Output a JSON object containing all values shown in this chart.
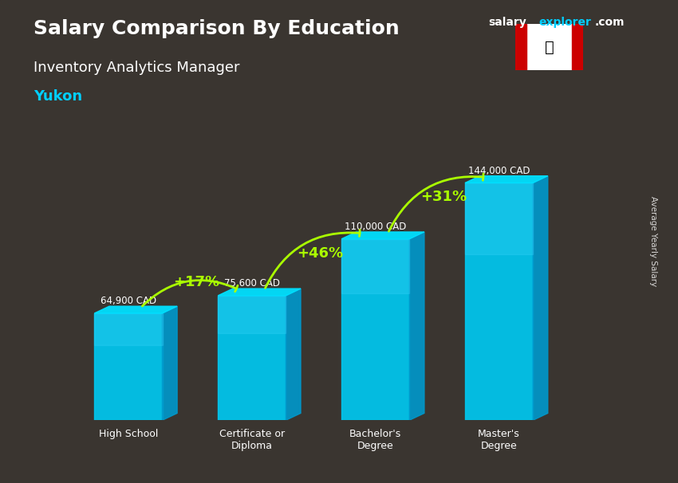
{
  "title_main": "Salary Comparison By Education",
  "title_sub": "Inventory Analytics Manager",
  "title_location": "Yukon",
  "categories": [
    "High School",
    "Certificate or\nDiploma",
    "Bachelor's\nDegree",
    "Master's\nDegree"
  ],
  "values": [
    64900,
    75600,
    110000,
    144000
  ],
  "labels": [
    "64,900 CAD",
    "75,600 CAD",
    "110,000 CAD",
    "144,000 CAD"
  ],
  "pct_changes": [
    "+17%",
    "+46%",
    "+31%"
  ],
  "bar_color_top": "#00cfff",
  "bar_color_mid": "#00aadd",
  "bar_color_bottom": "#007aaa",
  "bar_color_face": "#00bfee",
  "bg_color": "#1a1a2e",
  "text_color_white": "#ffffff",
  "text_color_cyan": "#00cfff",
  "text_color_green": "#aaff00",
  "ylabel": "Average Yearly Salary",
  "brand_salary": "salary",
  "brand_explorer": "explorer",
  "brand_dot_com": ".com",
  "ylim": [
    0,
    170000
  ],
  "bar_width": 0.55
}
